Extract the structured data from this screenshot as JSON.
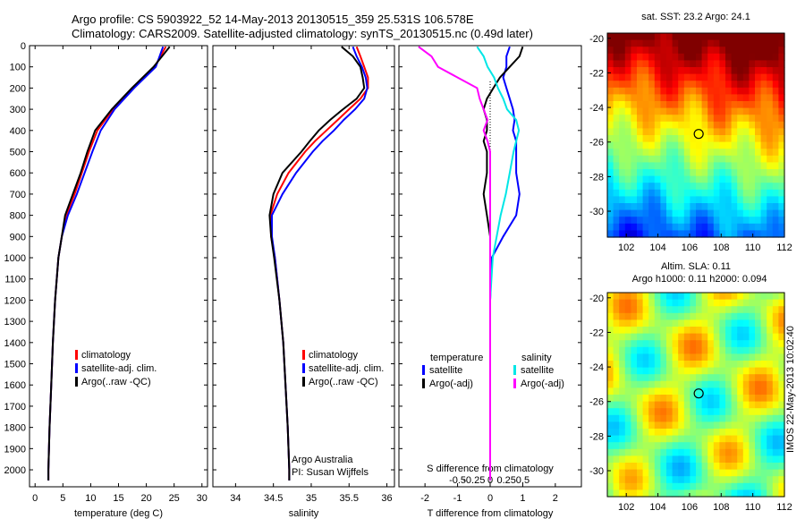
{
  "header": {
    "line1": "Argo profile: CS 5903922_52 14-May-2013 20130515_359 25.531S 106.578E",
    "line2": "Climatology: CARS2009. Satellite-adjusted climatology: synTS_20130515.nc (0.49d later)"
  },
  "colors": {
    "climatology": "#ff0000",
    "satellite": "#0000ff",
    "argo": "#000000",
    "sal_satellite": "#00e6e6",
    "sal_argo": "#ff00ff"
  },
  "chart_data": [
    {
      "type": "line",
      "xlabel": "temperature (deg C)",
      "ylabel": "",
      "xlim": [
        -1,
        31
      ],
      "ylim": [
        2080,
        0
      ],
      "xticks": [
        "0",
        "5",
        "10",
        "15",
        "20",
        "25",
        "30"
      ],
      "yticks": [
        "0",
        "100",
        "200",
        "300",
        "400",
        "500",
        "600",
        "700",
        "800",
        "900",
        "1000",
        "1100",
        "1200",
        "1300",
        "1400",
        "1500",
        "1600",
        "1700",
        "1800",
        "1900",
        "2000"
      ],
      "y": [
        5,
        100,
        200,
        300,
        400,
        500,
        600,
        700,
        800,
        900,
        1000,
        1200,
        1400,
        1600,
        1800,
        2000,
        2050
      ],
      "series": [
        {
          "name": "climatology",
          "values": [
            23.5,
            21.5,
            17.6,
            14.0,
            11.2,
            9.7,
            8.4,
            7.1,
            5.6,
            4.8,
            4.2,
            3.6,
            3.2,
            2.9,
            2.6,
            2.4,
            2.4
          ]
        },
        {
          "name": "satellite-adj. clim.",
          "values": [
            23.0,
            21.7,
            17.8,
            14.3,
            11.8,
            10.3,
            8.9,
            7.5,
            5.9,
            4.8,
            4.2,
            3.6,
            3.2,
            2.9,
            2.6,
            2.4,
            2.4
          ]
        },
        {
          "name": "Argo(..raw -QC)",
          "values": [
            24.2,
            21.3,
            17.4,
            13.8,
            10.8,
            9.4,
            8.2,
            6.8,
            5.4,
            4.8,
            4.2,
            3.6,
            3.2,
            2.9,
            2.6,
            2.4,
            2.4
          ]
        }
      ],
      "legend": [
        "climatology",
        "satellite-adj. clim.",
        "Argo(..raw -QC)"
      ]
    },
    {
      "type": "line",
      "xlabel": "salinity",
      "xlim": [
        33.7,
        36.1
      ],
      "ylim": [
        2080,
        0
      ],
      "xticks": [
        "34",
        "34.5",
        "35",
        "35.5",
        "36"
      ],
      "y": [
        5,
        50,
        100,
        150,
        200,
        250,
        300,
        350,
        400,
        450,
        500,
        600,
        700,
        800,
        900,
        1000,
        1200,
        1400,
        1600,
        1800,
        2000,
        2050
      ],
      "series": [
        {
          "name": "climatology",
          "values": [
            35.6,
            35.65,
            35.7,
            35.75,
            35.75,
            35.65,
            35.5,
            35.35,
            35.2,
            35.05,
            34.92,
            34.7,
            34.55,
            34.46,
            34.47,
            34.52,
            34.58,
            34.63,
            34.66,
            34.69,
            34.71,
            34.71
          ]
        },
        {
          "name": "satellite-adj. clim.",
          "values": [
            35.55,
            35.6,
            35.67,
            35.72,
            35.74,
            35.7,
            35.58,
            35.43,
            35.3,
            35.15,
            35.02,
            34.8,
            34.62,
            34.48,
            34.48,
            34.52,
            34.58,
            34.63,
            34.66,
            34.69,
            34.71,
            34.71
          ]
        },
        {
          "name": "Argo(..raw -QC)",
          "values": [
            35.4,
            35.55,
            35.65,
            35.68,
            35.7,
            35.6,
            35.42,
            35.25,
            35.1,
            34.98,
            34.87,
            34.62,
            34.5,
            34.45,
            34.47,
            34.51,
            34.58,
            34.63,
            34.66,
            34.69,
            34.71,
            34.71
          ]
        }
      ],
      "legend": [
        "climatology",
        "satellite-adj. clim.",
        "Argo(..raw -QC)"
      ],
      "annotation": [
        "Argo Australia",
        "PI: Susan Wijffels"
      ]
    },
    {
      "type": "line",
      "xlabel": "T difference from climatology",
      "x2label": "S difference from climatology",
      "xlim": [
        -2.8,
        2.8
      ],
      "ylim": [
        2080,
        0
      ],
      "xticks": [
        "-2",
        "-1",
        "0",
        "1",
        "2"
      ],
      "x2ticks": [
        "-0.5",
        "-0.25",
        "0",
        "0.25",
        "0.5"
      ],
      "y": [
        5,
        50,
        100,
        150,
        200,
        250,
        300,
        350,
        400,
        450,
        500,
        600,
        700,
        800,
        900,
        1000,
        1200,
        1400,
        1600,
        1800,
        2000,
        2050
      ],
      "series": [
        {
          "name": "temperature satellite",
          "values": [
            0.6,
            0.5,
            0.5,
            0.4,
            0.5,
            0.6,
            0.7,
            0.75,
            0.7,
            0.8,
            0.8,
            0.8,
            0.9,
            0.8,
            0.4,
            0.05,
            0,
            0,
            0,
            0,
            0,
            0
          ]
        },
        {
          "name": "temperature Argo(-adj)",
          "values": [
            1.0,
            0.9,
            0.6,
            0.3,
            0.1,
            -0.1,
            -0.2,
            -0.1,
            -0.1,
            -0.2,
            -0.1,
            -0.1,
            -0.2,
            -0.1,
            0,
            0,
            0,
            0,
            0,
            0,
            0,
            0
          ]
        },
        {
          "name": "salinity satellite",
          "values": [
            -0.1,
            -0.05,
            -0.02,
            0.03,
            0.06,
            0.1,
            0.13,
            0.2,
            0.22,
            0.2,
            0.18,
            0.15,
            0.12,
            0.08,
            0.05,
            0.02,
            0,
            0,
            0,
            0,
            0,
            0
          ]
        },
        {
          "name": "salinity Argo(-adj)",
          "values": [
            -0.55,
            -0.45,
            -0.4,
            -0.25,
            -0.1,
            -0.08,
            -0.05,
            -0.02,
            -0.05,
            -0.02,
            0.0,
            0.0,
            0,
            0,
            0,
            0,
            0,
            0,
            0,
            0,
            0,
            0
          ]
        }
      ],
      "legend_temperature": {
        "title": "temperature",
        "items": [
          "satellite",
          "Argo(-adj)"
        ]
      },
      "legend_salinity": {
        "title": "salinity",
        "items": [
          "satellite",
          "Argo(-adj)"
        ]
      }
    },
    {
      "type": "heatmap",
      "title": "sat. SST: 23.2  Argo: 24.1",
      "xticks": [
        "102",
        "104",
        "106",
        "108",
        "110",
        "112"
      ],
      "yticks": [
        "-20",
        "-22",
        "-24",
        "-26",
        "-28",
        "-30"
      ],
      "xlim": [
        100.8,
        112
      ],
      "ylim": [
        -31.5,
        -19.7
      ],
      "marker": {
        "x": 106.578,
        "y": -25.531
      }
    },
    {
      "type": "heatmap",
      "title1": "Altim. SLA: 0.11",
      "title2": "Argo h1000: 0.11  h2000: 0.094",
      "xticks": [
        "102",
        "104",
        "106",
        "108",
        "110",
        "112"
      ],
      "yticks": [
        "-20",
        "-22",
        "-24",
        "-26",
        "-28",
        "-30"
      ],
      "xlim": [
        100.8,
        112
      ],
      "ylim": [
        -31.5,
        -19.7
      ],
      "marker": {
        "x": 106.578,
        "y": -25.531
      }
    }
  ],
  "footer": {
    "stamp": "IMOS 22-May-2013 10:02:40"
  }
}
